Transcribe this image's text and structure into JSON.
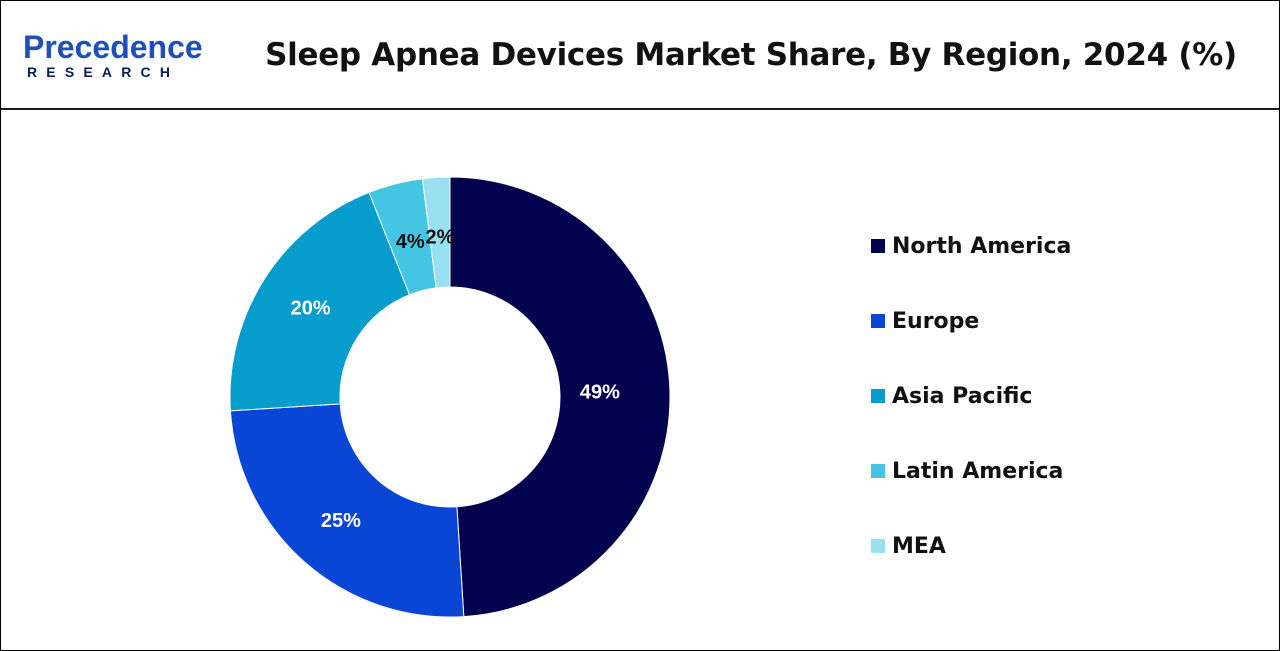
{
  "header": {
    "logo_main": "Precedence",
    "logo_sub": "RESEARCH",
    "title": "Sleep Apnea Devices Market Share, By Region, 2024 (%)"
  },
  "colors": {
    "brand_blue": "#1f4fb8",
    "brand_navy": "#0d1b4d"
  },
  "chart_data": {
    "type": "pie",
    "donut": true,
    "title": "Sleep Apnea Devices Market Share, By Region, 2024 (%)",
    "categories": [
      "North America",
      "Europe",
      "Asia Pacific",
      "Latin America",
      "MEA"
    ],
    "values": [
      49,
      25,
      20,
      4,
      2
    ],
    "data_labels": [
      "49%",
      "25%",
      "20%",
      "4%",
      "2%"
    ],
    "colors": [
      "#02024f",
      "#0a46d6",
      "#069ccc",
      "#44c5e2",
      "#96e0f0"
    ],
    "label_colors": [
      "#ffffff",
      "#ffffff",
      "#ffffff",
      "#111111",
      "#111111"
    ],
    "legend_position": "right"
  }
}
